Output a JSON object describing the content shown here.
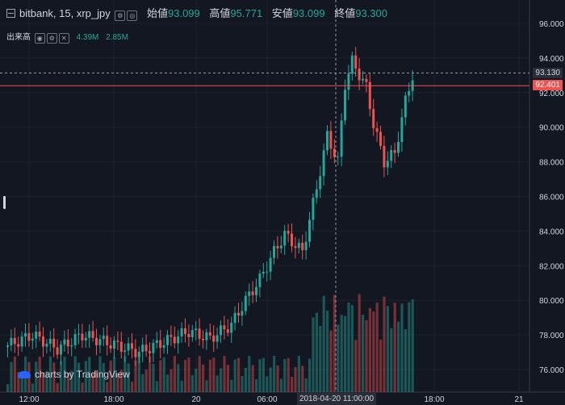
{
  "legend": {
    "symbol": "bitbank, 15, xrp_jpy",
    "open_label": "始値",
    "open": "93.099",
    "high_label": "高値",
    "high": "95.771",
    "low_label": "安値",
    "low": "93.099",
    "close_label": "終値",
    "close": "93.300"
  },
  "volume_legend": {
    "label": "出来高",
    "vol": "4.39M",
    "ma": "2.85M"
  },
  "price_tags": {
    "crosshair": "93.130",
    "last": "92.401"
  },
  "watermark": "charts by TradingView",
  "x_axis_highlight": "2018-04-20 11:00:00",
  "colors": {
    "up": "#26a69a",
    "down": "#ef5350",
    "bg": "#131722"
  },
  "chart_data": {
    "type": "candlestick",
    "y_ticks": [
      "96.000",
      "94.000",
      "92.000",
      "90.000",
      "88.000",
      "86.000",
      "84.000",
      "82.000",
      "80.000",
      "78.000",
      "76.000"
    ],
    "x_ticks": [
      "12:00",
      "18:00",
      "20",
      "06:00",
      "18:00",
      "21"
    ],
    "ylim": [
      75,
      96.5
    ]
  }
}
